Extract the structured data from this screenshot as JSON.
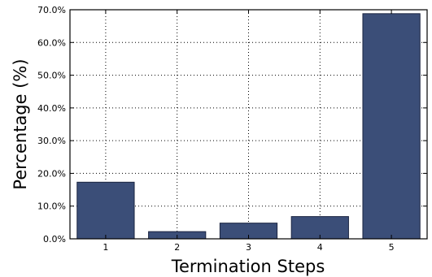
{
  "chart_data": {
    "type": "bar",
    "title": "",
    "xlabel": "Termination Steps",
    "ylabel": "Percentage (%)",
    "categories": [
      "1",
      "2",
      "3",
      "4",
      "5"
    ],
    "values": [
      17.3,
      2.2,
      4.8,
      6.8,
      68.8
    ],
    "ylim": [
      0,
      70
    ],
    "yticks": [
      0,
      10,
      20,
      30,
      40,
      50,
      60,
      70
    ],
    "ytick_labels": [
      "0.0%",
      "10.0%",
      "20.0%",
      "30.0%",
      "40.0%",
      "50.0%",
      "60.0%",
      "70.0%"
    ],
    "grid": true,
    "bar_color": "#3b4e78"
  }
}
